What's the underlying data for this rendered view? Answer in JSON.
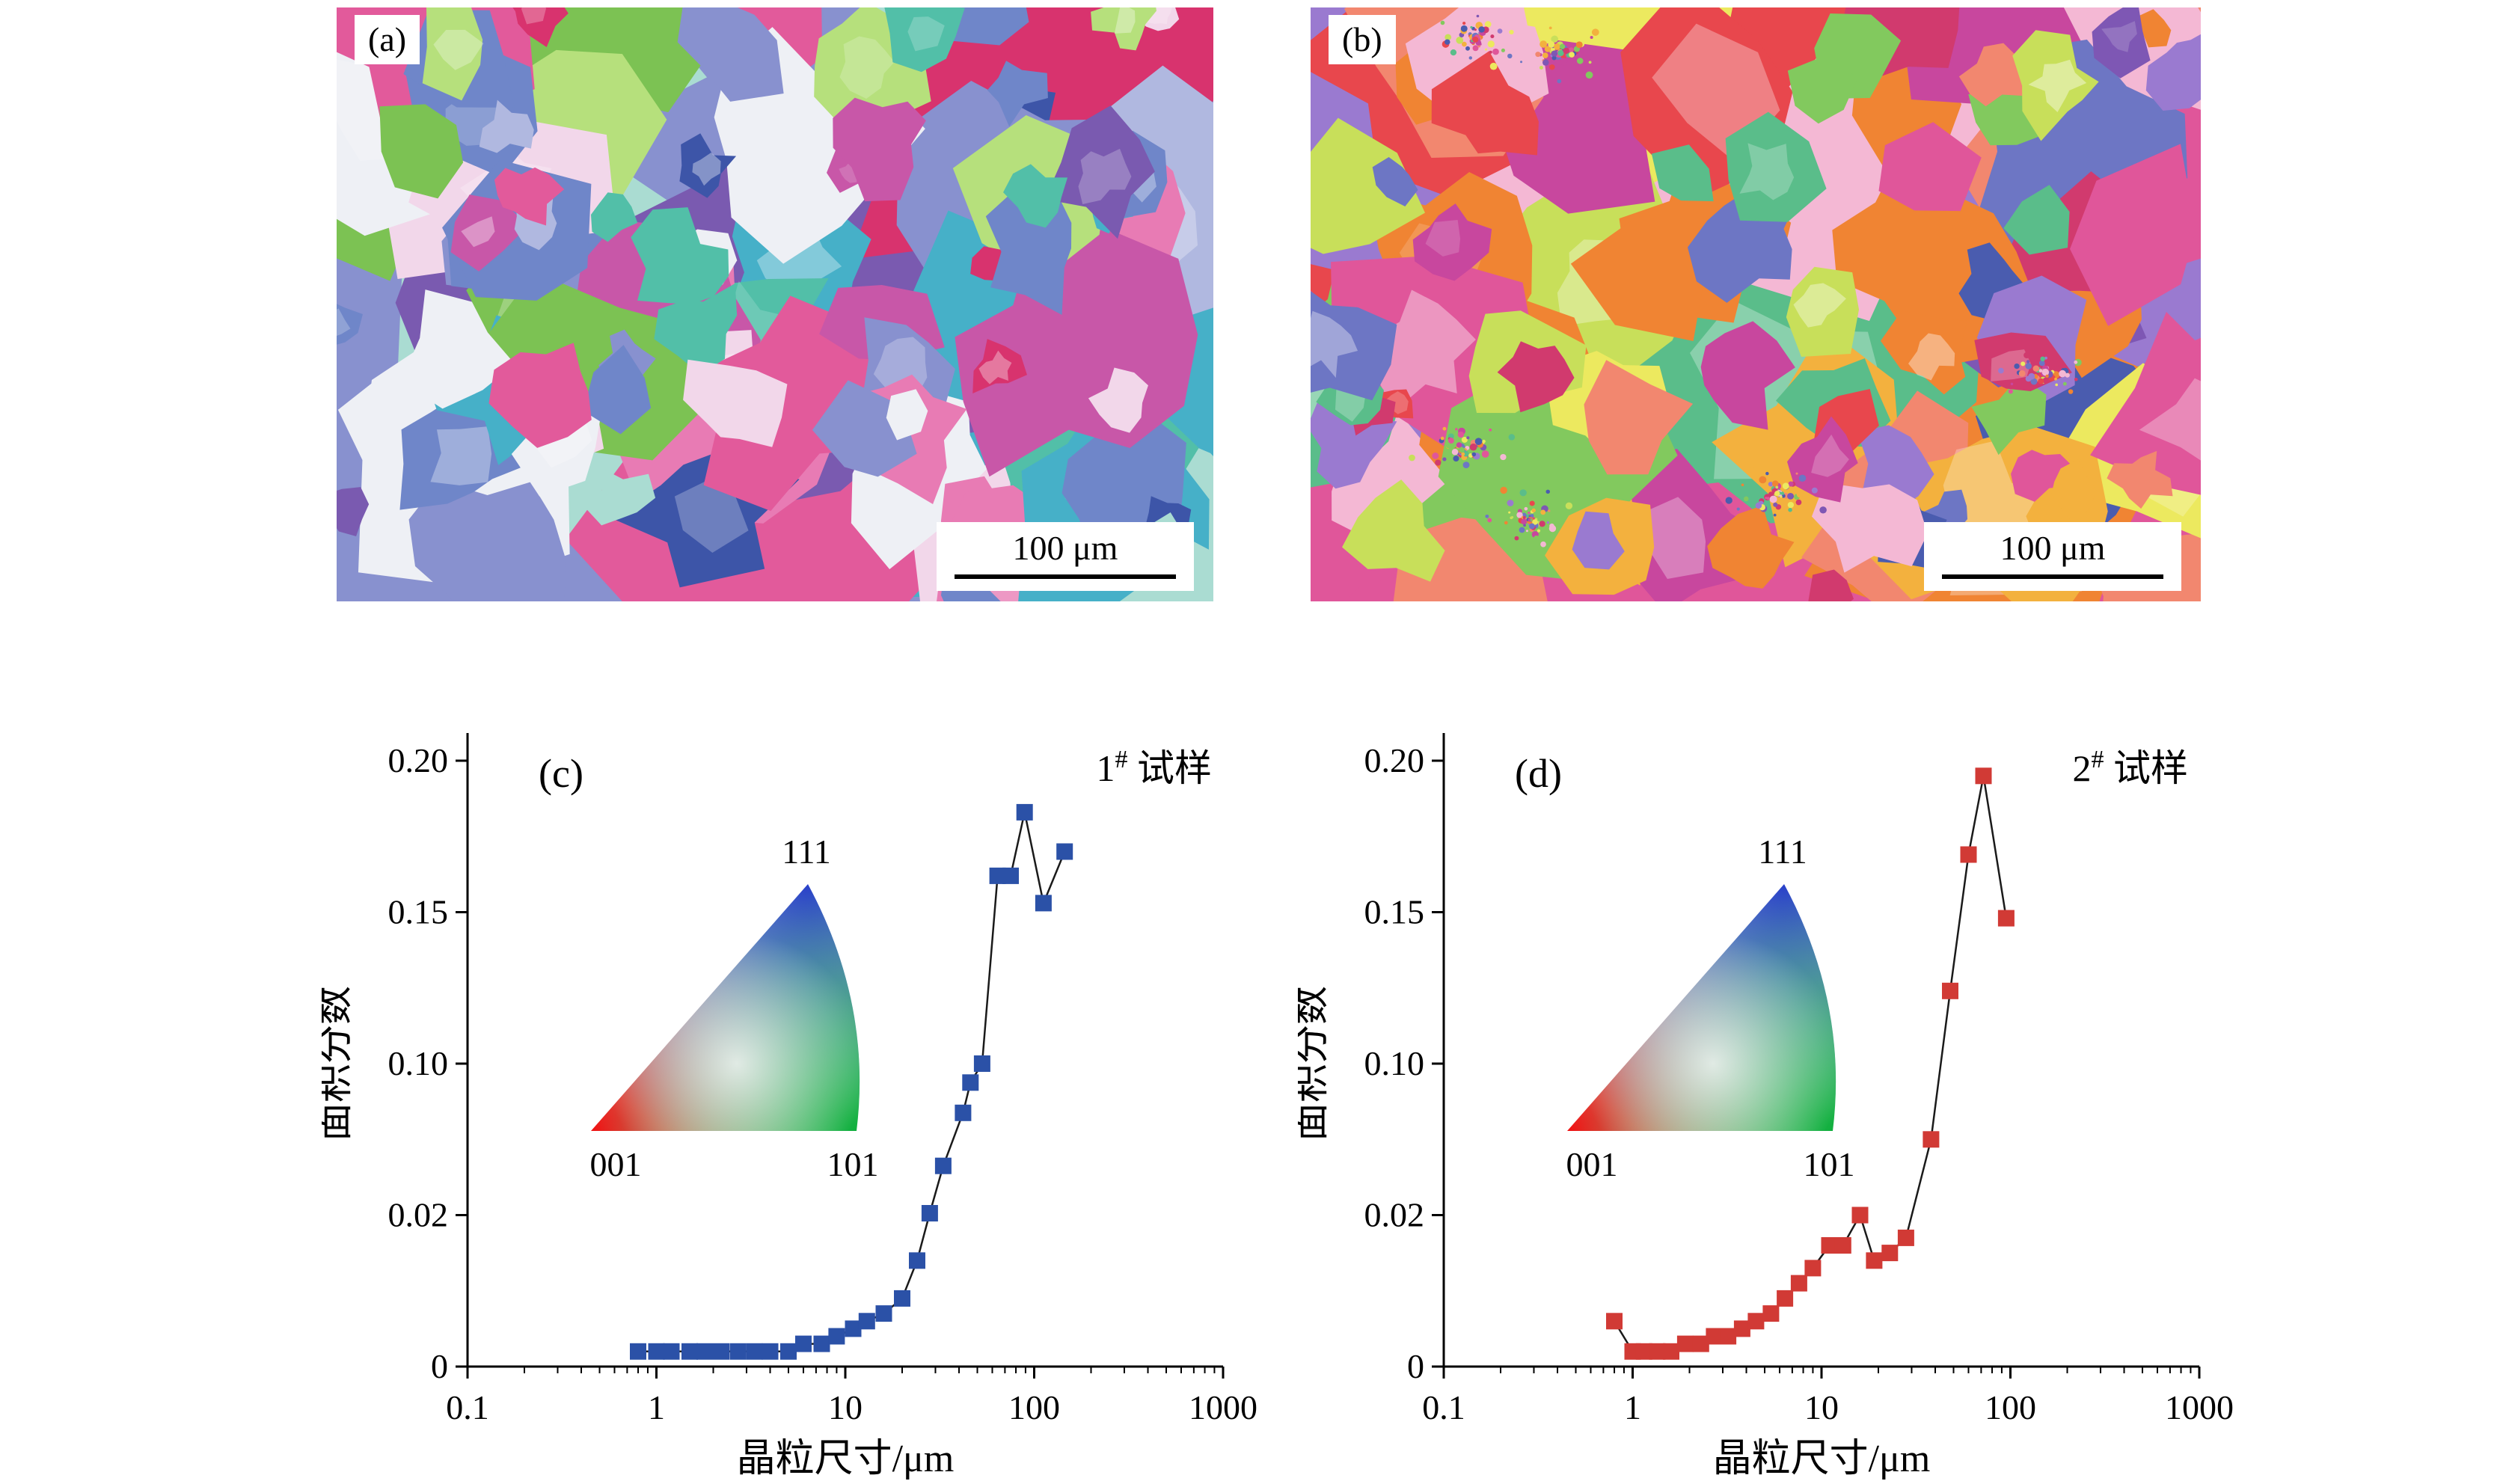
{
  "figure": {
    "panels": {
      "a": {
        "label": "(a)",
        "scale_bar": "100 μm",
        "palette": [
          "#8891cf",
          "#3d55a8",
          "#6f86c9",
          "#52bfa8",
          "#aadcd2",
          "#7cc253",
          "#b6e07c",
          "#c857a8",
          "#e25a9b",
          "#d8336e",
          "#e87bb4",
          "#f2d7ea",
          "#7a5ab0",
          "#b0b8e0",
          "#eef0f5",
          "#46b0c8"
        ]
      },
      "b": {
        "label": "(b)",
        "scale_bar": "100 μm",
        "palette": [
          "#e0569a",
          "#d13a6e",
          "#c8479e",
          "#e8474d",
          "#f08433",
          "#f3b13e",
          "#ece95f",
          "#c8df5a",
          "#82c95e",
          "#5abd8a",
          "#4a5caf",
          "#7e57b4",
          "#9a7ad0",
          "#f4b8d4",
          "#f2876f",
          "#6d76c4"
        ]
      }
    }
  },
  "chart_data": [
    {
      "type": "scatter",
      "panel": "c",
      "panel_label": "(c)",
      "title": "1# 试样",
      "title_parts": {
        "base": "1",
        "sup": "#",
        "suffix": " 试样"
      },
      "xlabel": "晶粒尺寸/μm",
      "ylabel": "面积分数",
      "x_scale": "log",
      "xlim": [
        0.1,
        1000
      ],
      "ylim": [
        0,
        0.2
      ],
      "grid": false,
      "legend_position": "none",
      "marker": "square",
      "color": "#2b51a7",
      "line_color": "#1a1a1a",
      "x_ticks": [
        {
          "label": "0.1",
          "v": 0.1
        },
        {
          "label": "1",
          "v": 1
        },
        {
          "label": "10",
          "v": 10
        },
        {
          "label": "100",
          "v": 100
        },
        {
          "label": "1000",
          "v": 1000
        }
      ],
      "y_ticks": [
        {
          "label": "0",
          "v": 0
        },
        {
          "label": "0.02",
          "v": 0.02
        },
        {
          "label": "0.10",
          "v": 0.1
        },
        {
          "label": "0.15",
          "v": 0.15
        },
        {
          "label": "0.20",
          "v": 0.2
        }
      ],
      "inset": {
        "top": "111",
        "bottom_left": "001",
        "bottom_right": "101"
      },
      "x": [
        0.8,
        1.0,
        1.2,
        1.5,
        1.8,
        2.2,
        2.7,
        3.3,
        4.0,
        5.0,
        6.0,
        7.5,
        9.0,
        11,
        13,
        16,
        20,
        24,
        28,
        33,
        42,
        46,
        53,
        64,
        75,
        89,
        112,
        145
      ],
      "y": [
        0.002,
        0.002,
        0.002,
        0.002,
        0.002,
        0.002,
        0.002,
        0.002,
        0.002,
        0.002,
        0.003,
        0.003,
        0.004,
        0.005,
        0.006,
        0.007,
        0.009,
        0.014,
        0.021,
        0.046,
        0.074,
        0.09,
        0.1,
        0.162,
        0.162,
        0.183,
        0.153,
        0.17
      ]
    },
    {
      "type": "scatter",
      "panel": "d",
      "panel_label": "(d)",
      "title": "2# 试样",
      "title_parts": {
        "base": "2",
        "sup": "#",
        "suffix": " 试样"
      },
      "xlabel": "晶粒尺寸/μm",
      "ylabel": "面积分数",
      "x_scale": "log",
      "xlim": [
        0.1,
        1000
      ],
      "ylim": [
        0,
        0.2
      ],
      "grid": false,
      "legend_position": "none",
      "marker": "square",
      "color": "#d13a35",
      "line_color": "#1a1a1a",
      "x_ticks": [
        {
          "label": "0.1",
          "v": 0.1
        },
        {
          "label": "1",
          "v": 1
        },
        {
          "label": "10",
          "v": 10
        },
        {
          "label": "100",
          "v": 100
        },
        {
          "label": "1000",
          "v": 1000
        }
      ],
      "y_ticks": [
        {
          "label": "0",
          "v": 0
        },
        {
          "label": "0.02",
          "v": 0.02
        },
        {
          "label": "0.10",
          "v": 0.1
        },
        {
          "label": "0.15",
          "v": 0.15
        },
        {
          "label": "0.20",
          "v": 0.2
        }
      ],
      "inset": {
        "top": "111",
        "bottom_left": "001",
        "bottom_right": "101"
      },
      "x": [
        0.8,
        1.0,
        1.15,
        1.35,
        1.6,
        1.9,
        2.3,
        2.7,
        3.2,
        3.8,
        4.5,
        5.4,
        6.4,
        7.6,
        9.0,
        11,
        13,
        16,
        19,
        23,
        28,
        38,
        48,
        60,
        72,
        95
      ],
      "y": [
        0.006,
        0.002,
        0.002,
        0.002,
        0.002,
        0.003,
        0.003,
        0.004,
        0.004,
        0.005,
        0.006,
        0.007,
        0.009,
        0.011,
        0.013,
        0.016,
        0.016,
        0.02,
        0.014,
        0.015,
        0.017,
        0.06,
        0.124,
        0.169,
        0.195,
        0.148
      ]
    }
  ]
}
